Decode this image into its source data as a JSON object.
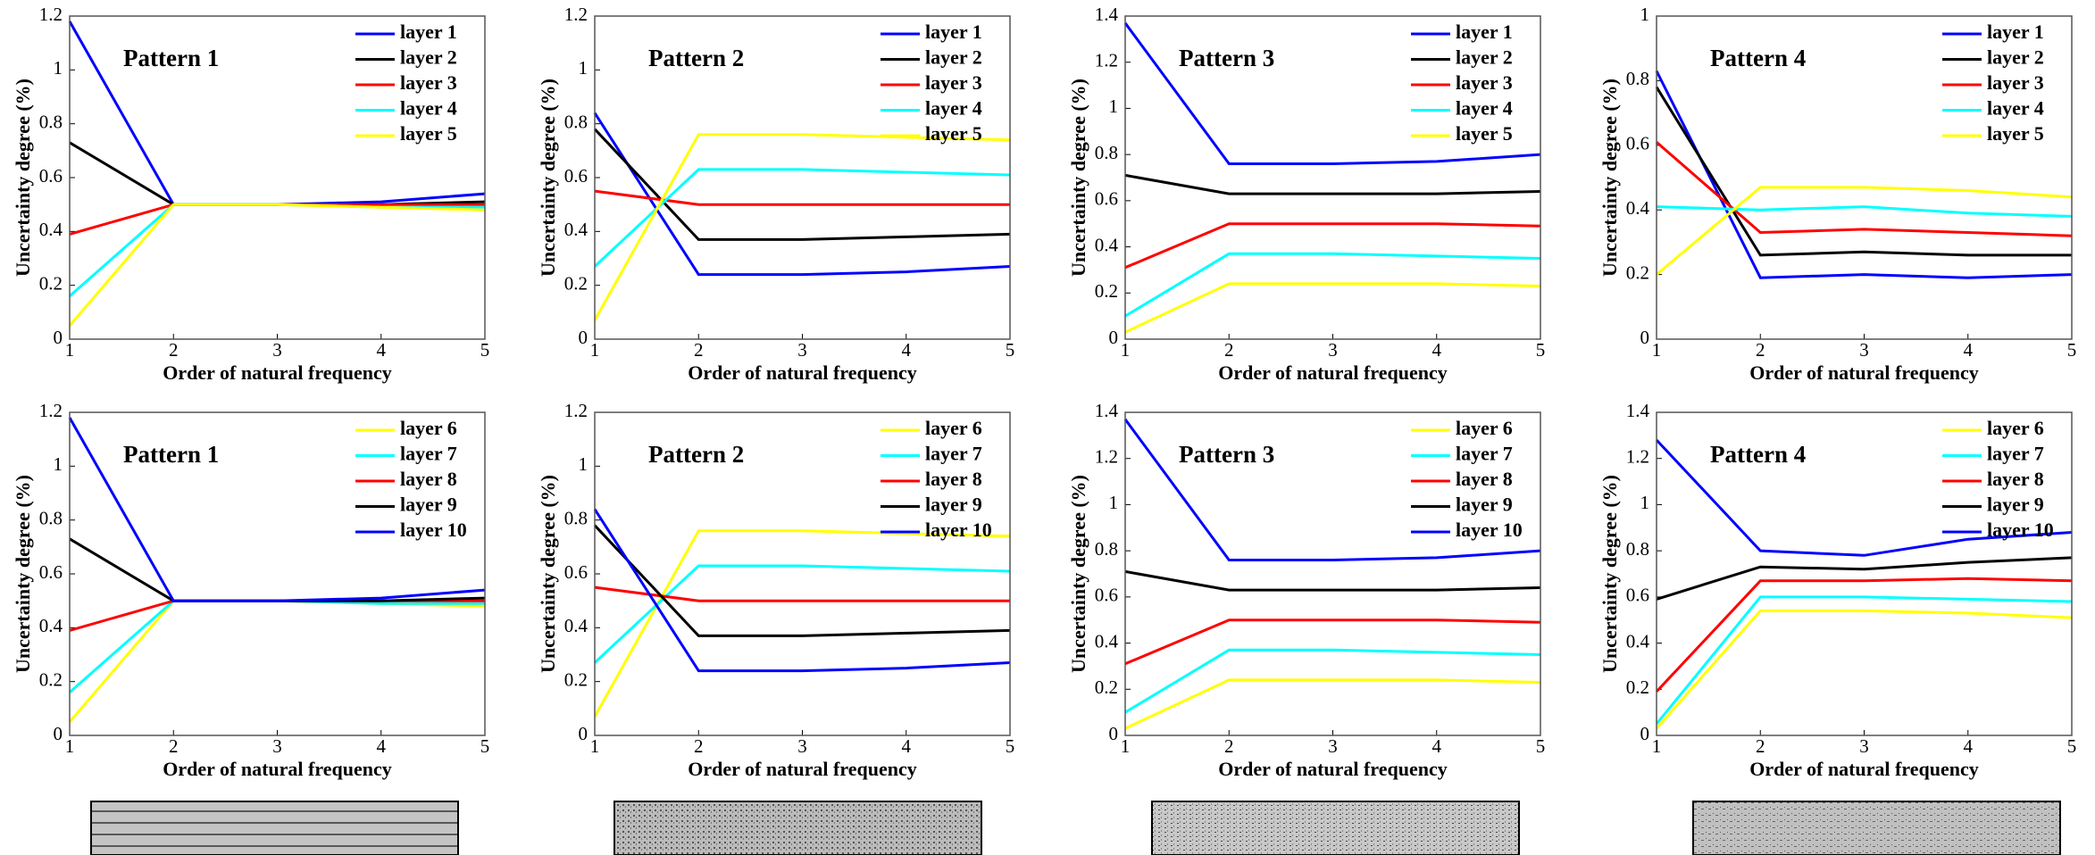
{
  "chart_data": [
    {
      "type": "line",
      "title": "Pattern 1",
      "xlabel": "Order of natural frequency",
      "ylabel": "Uncertainty degree (%)",
      "x": [
        1,
        2,
        3,
        4,
        5
      ],
      "xlim": [
        1,
        5
      ],
      "xticks": [
        1,
        2,
        3,
        4,
        5
      ],
      "ylim": [
        0,
        1.2
      ],
      "yticks": [
        0,
        0.2,
        0.4,
        0.6,
        0.8,
        1,
        1.2
      ],
      "series": [
        {
          "name": "layer 1",
          "color": "#0000ff",
          "values": [
            1.18,
            0.5,
            0.5,
            0.51,
            0.54
          ]
        },
        {
          "name": "layer 2",
          "color": "#000000",
          "values": [
            0.73,
            0.5,
            0.5,
            0.5,
            0.51
          ]
        },
        {
          "name": "layer 3",
          "color": "#ff0000",
          "values": [
            0.39,
            0.5,
            0.5,
            0.5,
            0.5
          ]
        },
        {
          "name": "layer 4",
          "color": "#00ffff",
          "values": [
            0.16,
            0.5,
            0.5,
            0.49,
            0.49
          ]
        },
        {
          "name": "layer 5",
          "color": "#ffff00",
          "values": [
            0.05,
            0.5,
            0.5,
            0.49,
            0.48
          ]
        }
      ]
    },
    {
      "type": "line",
      "title": "Pattern 2",
      "xlabel": "Order of natural frequency",
      "ylabel": "Uncertainty degree (%)",
      "x": [
        1,
        2,
        3,
        4,
        5
      ],
      "xlim": [
        1,
        5
      ],
      "xticks": [
        1,
        2,
        3,
        4,
        5
      ],
      "ylim": [
        0,
        1.2
      ],
      "yticks": [
        0,
        0.2,
        0.4,
        0.6,
        0.8,
        1,
        1.2
      ],
      "series": [
        {
          "name": "layer 1",
          "color": "#0000ff",
          "values": [
            0.84,
            0.24,
            0.24,
            0.25,
            0.27
          ]
        },
        {
          "name": "layer 2",
          "color": "#000000",
          "values": [
            0.78,
            0.37,
            0.37,
            0.38,
            0.39
          ]
        },
        {
          "name": "layer 3",
          "color": "#ff0000",
          "values": [
            0.55,
            0.5,
            0.5,
            0.5,
            0.5
          ]
        },
        {
          "name": "layer 4",
          "color": "#00ffff",
          "values": [
            0.27,
            0.63,
            0.63,
            0.62,
            0.61
          ]
        },
        {
          "name": "layer 5",
          "color": "#ffff00",
          "values": [
            0.07,
            0.76,
            0.76,
            0.75,
            0.74
          ]
        }
      ]
    },
    {
      "type": "line",
      "title": "Pattern 3",
      "xlabel": "Order of natural frequency",
      "ylabel": "Uncertainty degree (%)",
      "x": [
        1,
        2,
        3,
        4,
        5
      ],
      "xlim": [
        1,
        5
      ],
      "xticks": [
        1,
        2,
        3,
        4,
        5
      ],
      "ylim": [
        0,
        1.4
      ],
      "yticks": [
        0,
        0.2,
        0.4,
        0.6,
        0.8,
        1,
        1.2,
        1.4
      ],
      "series": [
        {
          "name": "layer 1",
          "color": "#0000ff",
          "values": [
            1.37,
            0.76,
            0.76,
            0.77,
            0.8
          ]
        },
        {
          "name": "layer 2",
          "color": "#000000",
          "values": [
            0.71,
            0.63,
            0.63,
            0.63,
            0.64
          ]
        },
        {
          "name": "layer 3",
          "color": "#ff0000",
          "values": [
            0.31,
            0.5,
            0.5,
            0.5,
            0.49
          ]
        },
        {
          "name": "layer 4",
          "color": "#00ffff",
          "values": [
            0.1,
            0.37,
            0.37,
            0.36,
            0.35
          ]
        },
        {
          "name": "layer 5",
          "color": "#ffff00",
          "values": [
            0.03,
            0.24,
            0.24,
            0.24,
            0.23
          ]
        }
      ]
    },
    {
      "type": "line",
      "title": "Pattern 4",
      "xlabel": "Order of natural frequency",
      "ylabel": "Uncertainty degree (%)",
      "x": [
        1,
        2,
        3,
        4,
        5
      ],
      "xlim": [
        1,
        5
      ],
      "xticks": [
        1,
        2,
        3,
        4,
        5
      ],
      "ylim": [
        0,
        1
      ],
      "yticks": [
        0,
        0.2,
        0.4,
        0.6,
        0.8,
        1
      ],
      "series": [
        {
          "name": "layer 1",
          "color": "#0000ff",
          "values": [
            0.83,
            0.19,
            0.2,
            0.19,
            0.2
          ]
        },
        {
          "name": "layer 2",
          "color": "#000000",
          "values": [
            0.78,
            0.26,
            0.27,
            0.26,
            0.26
          ]
        },
        {
          "name": "layer 3",
          "color": "#ff0000",
          "values": [
            0.61,
            0.33,
            0.34,
            0.33,
            0.32
          ]
        },
        {
          "name": "layer 4",
          "color": "#00ffff",
          "values": [
            0.41,
            0.4,
            0.41,
            0.39,
            0.38
          ]
        },
        {
          "name": "layer 5",
          "color": "#ffff00",
          "values": [
            0.2,
            0.47,
            0.47,
            0.46,
            0.44
          ]
        }
      ]
    },
    {
      "type": "line",
      "title": "Pattern 1",
      "xlabel": "Order of natural frequency",
      "ylabel": "Uncertainty degree (%)",
      "x": [
        1,
        2,
        3,
        4,
        5
      ],
      "xlim": [
        1,
        5
      ],
      "xticks": [
        1,
        2,
        3,
        4,
        5
      ],
      "ylim": [
        0,
        1.2
      ],
      "yticks": [
        0,
        0.2,
        0.4,
        0.6,
        0.8,
        1,
        1.2
      ],
      "series": [
        {
          "name": "layer 6",
          "color": "#ffff00",
          "values": [
            0.05,
            0.5,
            0.5,
            0.49,
            0.48
          ]
        },
        {
          "name": "layer 7",
          "color": "#00ffff",
          "values": [
            0.16,
            0.5,
            0.5,
            0.49,
            0.49
          ]
        },
        {
          "name": "layer 8",
          "color": "#ff0000",
          "values": [
            0.39,
            0.5,
            0.5,
            0.5,
            0.5
          ]
        },
        {
          "name": "layer 9",
          "color": "#000000",
          "values": [
            0.73,
            0.5,
            0.5,
            0.5,
            0.51
          ]
        },
        {
          "name": "layer 10",
          "color": "#0000ff",
          "values": [
            1.18,
            0.5,
            0.5,
            0.51,
            0.54
          ]
        }
      ]
    },
    {
      "type": "line",
      "title": "Pattern 2",
      "xlabel": "Order of natural frequency",
      "ylabel": "Uncertainty degree (%)",
      "x": [
        1,
        2,
        3,
        4,
        5
      ],
      "xlim": [
        1,
        5
      ],
      "xticks": [
        1,
        2,
        3,
        4,
        5
      ],
      "ylim": [
        0,
        1.2
      ],
      "yticks": [
        0,
        0.2,
        0.4,
        0.6,
        0.8,
        1,
        1.2
      ],
      "series": [
        {
          "name": "layer 6",
          "color": "#ffff00",
          "values": [
            0.07,
            0.76,
            0.76,
            0.75,
            0.74
          ]
        },
        {
          "name": "layer 7",
          "color": "#00ffff",
          "values": [
            0.27,
            0.63,
            0.63,
            0.62,
            0.61
          ]
        },
        {
          "name": "layer 8",
          "color": "#ff0000",
          "values": [
            0.55,
            0.5,
            0.5,
            0.5,
            0.5
          ]
        },
        {
          "name": "layer 9",
          "color": "#000000",
          "values": [
            0.78,
            0.37,
            0.37,
            0.38,
            0.39
          ]
        },
        {
          "name": "layer 10",
          "color": "#0000ff",
          "values": [
            0.84,
            0.24,
            0.24,
            0.25,
            0.27
          ]
        }
      ]
    },
    {
      "type": "line",
      "title": "Pattern 3",
      "xlabel": "Order of natural frequency",
      "ylabel": "Uncertainty degree (%)",
      "x": [
        1,
        2,
        3,
        4,
        5
      ],
      "xlim": [
        1,
        5
      ],
      "xticks": [
        1,
        2,
        3,
        4,
        5
      ],
      "ylim": [
        0,
        1.4
      ],
      "yticks": [
        0,
        0.2,
        0.4,
        0.6,
        0.8,
        1,
        1.2,
        1.4
      ],
      "series": [
        {
          "name": "layer 6",
          "color": "#ffff00",
          "values": [
            0.03,
            0.24,
            0.24,
            0.24,
            0.23
          ]
        },
        {
          "name": "layer 7",
          "color": "#00ffff",
          "values": [
            0.1,
            0.37,
            0.37,
            0.36,
            0.35
          ]
        },
        {
          "name": "layer 8",
          "color": "#ff0000",
          "values": [
            0.31,
            0.5,
            0.5,
            0.5,
            0.49
          ]
        },
        {
          "name": "layer 9",
          "color": "#000000",
          "values": [
            0.71,
            0.63,
            0.63,
            0.63,
            0.64
          ]
        },
        {
          "name": "layer 10",
          "color": "#0000ff",
          "values": [
            1.37,
            0.76,
            0.76,
            0.77,
            0.8
          ]
        }
      ]
    },
    {
      "type": "line",
      "title": "Pattern 4",
      "xlabel": "Order of natural frequency",
      "ylabel": "Uncertainty degree (%)",
      "x": [
        1,
        2,
        3,
        4,
        5
      ],
      "xlim": [
        1,
        5
      ],
      "xticks": [
        1,
        2,
        3,
        4,
        5
      ],
      "ylim": [
        0,
        1.4
      ],
      "yticks": [
        0,
        0.2,
        0.4,
        0.6,
        0.8,
        1,
        1.2,
        1.4
      ],
      "series": [
        {
          "name": "layer 6",
          "color": "#ffff00",
          "values": [
            0.03,
            0.54,
            0.54,
            0.53,
            0.51
          ]
        },
        {
          "name": "layer 7",
          "color": "#00ffff",
          "values": [
            0.05,
            0.6,
            0.6,
            0.59,
            0.58
          ]
        },
        {
          "name": "layer 8",
          "color": "#ff0000",
          "values": [
            0.19,
            0.67,
            0.67,
            0.68,
            0.67
          ]
        },
        {
          "name": "layer 9",
          "color": "#000000",
          "values": [
            0.59,
            0.73,
            0.72,
            0.75,
            0.77
          ]
        },
        {
          "name": "layer 10",
          "color": "#0000ff",
          "values": [
            1.28,
            0.8,
            0.78,
            0.85,
            0.88
          ]
        }
      ]
    }
  ]
}
